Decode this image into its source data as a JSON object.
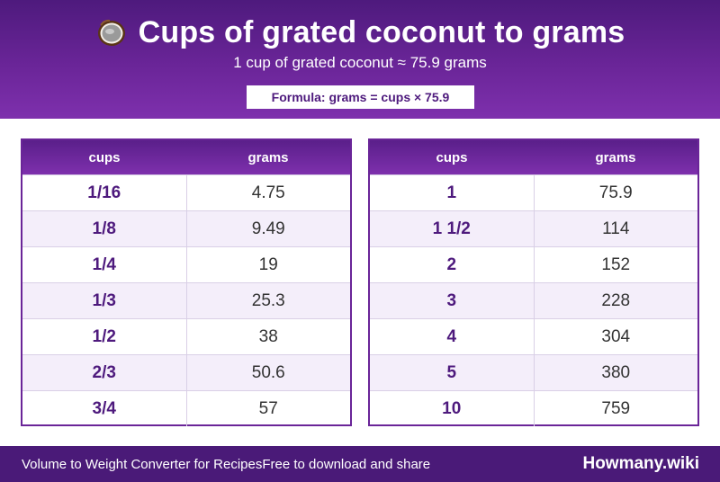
{
  "header": {
    "title": "Cups of grated coconut to grams",
    "subtitle": "1 cup of grated coconut ≈ 75.9 grams",
    "formula": "Formula: grams = cups × 75.9",
    "icon": "coconut-icon"
  },
  "columns": {
    "cups": "cups",
    "grams": "grams"
  },
  "table_left": [
    {
      "cups": "1/16",
      "grams": "4.75"
    },
    {
      "cups": "1/8",
      "grams": "9.49"
    },
    {
      "cups": "1/4",
      "grams": "19"
    },
    {
      "cups": "1/3",
      "grams": "25.3"
    },
    {
      "cups": "1/2",
      "grams": "38"
    },
    {
      "cups": "2/3",
      "grams": "50.6"
    },
    {
      "cups": "3/4",
      "grams": "57"
    }
  ],
  "table_right": [
    {
      "cups": "1",
      "grams": "75.9"
    },
    {
      "cups": "1 1/2",
      "grams": "114"
    },
    {
      "cups": "2",
      "grams": "152"
    },
    {
      "cups": "3",
      "grams": "228"
    },
    {
      "cups": "4",
      "grams": "304"
    },
    {
      "cups": "5",
      "grams": "380"
    },
    {
      "cups": "10",
      "grams": "759"
    }
  ],
  "footer": {
    "tagline": "Volume to Weight Converter for Recipes",
    "share": "Free to download and share",
    "brand": "Howmany.wiki"
  },
  "colors": {
    "header_purple": "#6a2598",
    "accent_text": "#4e1a7d",
    "row_alt": "#f4eefa",
    "footer_bg": "#4a1a78"
  }
}
